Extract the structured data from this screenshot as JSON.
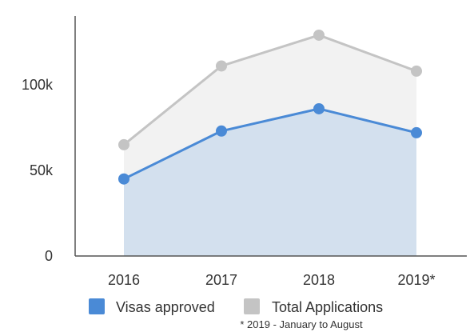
{
  "chart_data": {
    "type": "area",
    "categories": [
      "2016",
      "2017",
      "2018",
      "2019*"
    ],
    "y_ticks": [
      {
        "value": 0,
        "label": "0"
      },
      {
        "value": 50000,
        "label": "50k"
      },
      {
        "value": 100000,
        "label": "100k"
      }
    ],
    "ylim": [
      0,
      138000
    ],
    "grid": false,
    "legend_position": "bottom",
    "series": [
      {
        "name": "Total Applications",
        "values": [
          65000,
          111000,
          129000,
          108000
        ],
        "line_color": "#c4c4c4",
        "fill_color": "#f2f2f2"
      },
      {
        "name": "Visas approved",
        "values": [
          45000,
          73000,
          86000,
          72000
        ],
        "line_color": "#4a8ad6",
        "fill_color": "#d3e0ee"
      }
    ],
    "legend": [
      {
        "label": "Visas approved",
        "color": "#4a8ad6"
      },
      {
        "label": "Total Applications",
        "color": "#c4c4c4"
      }
    ],
    "footnote": "* 2019 - January to August"
  }
}
